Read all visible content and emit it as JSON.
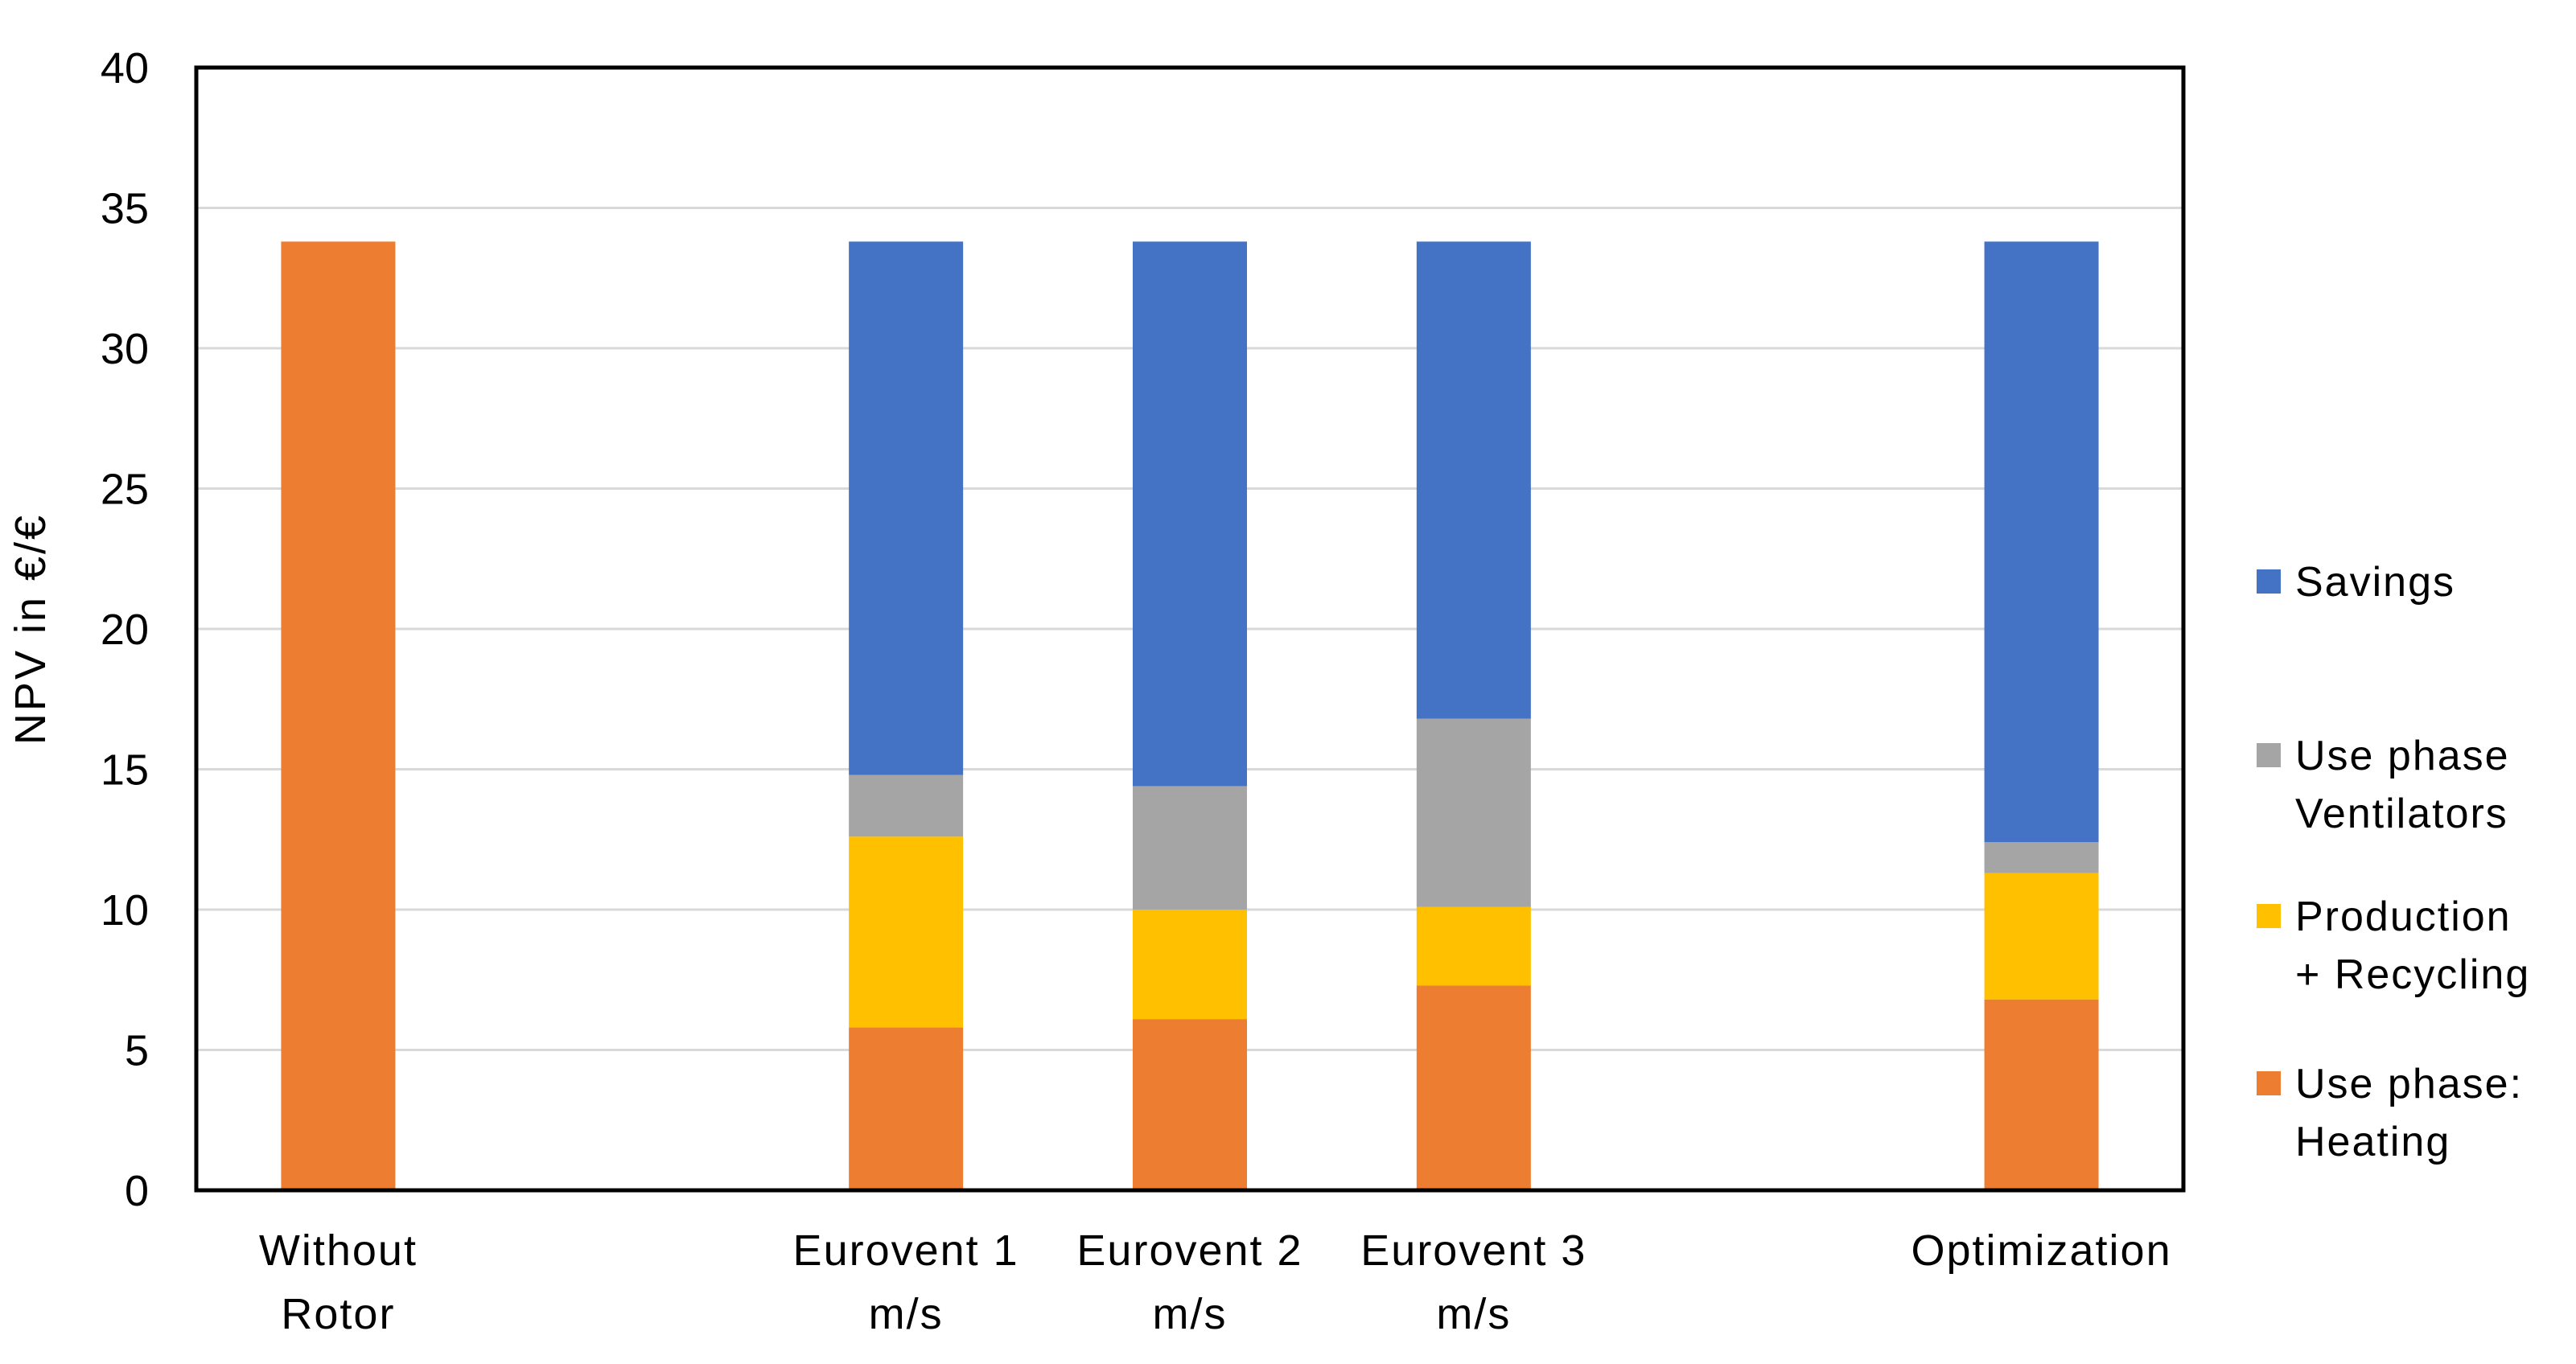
{
  "chart_data": {
    "type": "bar",
    "stacked": true,
    "title": "",
    "ylabel": "NPV in €/€",
    "xlabel": "",
    "ylim": [
      0,
      40
    ],
    "yticks": [
      0,
      5,
      10,
      15,
      20,
      25,
      30,
      35,
      40
    ],
    "grid": true,
    "legend_position": "right",
    "categories": [
      {
        "id": "without-rotor",
        "label": "Without Rotor",
        "label_lines": [
          "Without",
          "Rotor"
        ]
      },
      {
        "id": "spacer-1",
        "label": "",
        "label_lines": []
      },
      {
        "id": "eurovent-1",
        "label": "Eurovent 1 m/s",
        "label_lines": [
          "Eurovent 1",
          "m/s"
        ]
      },
      {
        "id": "eurovent-2",
        "label": "Eurovent 2 m/s",
        "label_lines": [
          "Eurovent 2",
          "m/s"
        ]
      },
      {
        "id": "eurovent-3",
        "label": "Eurovent 3 m/s",
        "label_lines": [
          "Eurovent 3",
          "m/s"
        ]
      },
      {
        "id": "spacer-2",
        "label": "",
        "label_lines": []
      },
      {
        "id": "optimization",
        "label": "Optimization",
        "label_lines": [
          "Optimization"
        ]
      }
    ],
    "series": [
      {
        "name": "Use phase: Heating",
        "color": "#ED7D31",
        "values": [
          33.8,
          null,
          5.8,
          6.1,
          7.3,
          null,
          6.8
        ]
      },
      {
        "name": "Production + Recycling",
        "color": "#FFC000",
        "values": [
          0,
          null,
          6.8,
          3.9,
          2.8,
          null,
          4.5
        ]
      },
      {
        "name": "Use phase Ventilators",
        "color": "#A5A5A5",
        "values": [
          0,
          null,
          2.2,
          4.4,
          6.7,
          null,
          1.1
        ]
      },
      {
        "name": "Savings",
        "color": "#4472C4",
        "values": [
          0,
          null,
          19.0,
          19.4,
          17.0,
          null,
          21.4
        ]
      }
    ],
    "legend": [
      {
        "series": "Savings",
        "color": "#4472C4",
        "lines": [
          "Savings"
        ]
      },
      {
        "series": "Use phase Ventilators",
        "color": "#A5A5A5",
        "lines": [
          "Use phase",
          "Ventilators"
        ]
      },
      {
        "series": "Production + Recycling",
        "color": "#FFC000",
        "lines": [
          "Production",
          "+ Recycling"
        ]
      },
      {
        "series": "Use phase: Heating",
        "color": "#ED7D31",
        "lines": [
          "Use phase:",
          "Heating"
        ]
      }
    ],
    "colors": {
      "gridline": "#D9D9D9",
      "frame": "#000000",
      "text": "#000000",
      "background": "#FFFFFF"
    }
  }
}
